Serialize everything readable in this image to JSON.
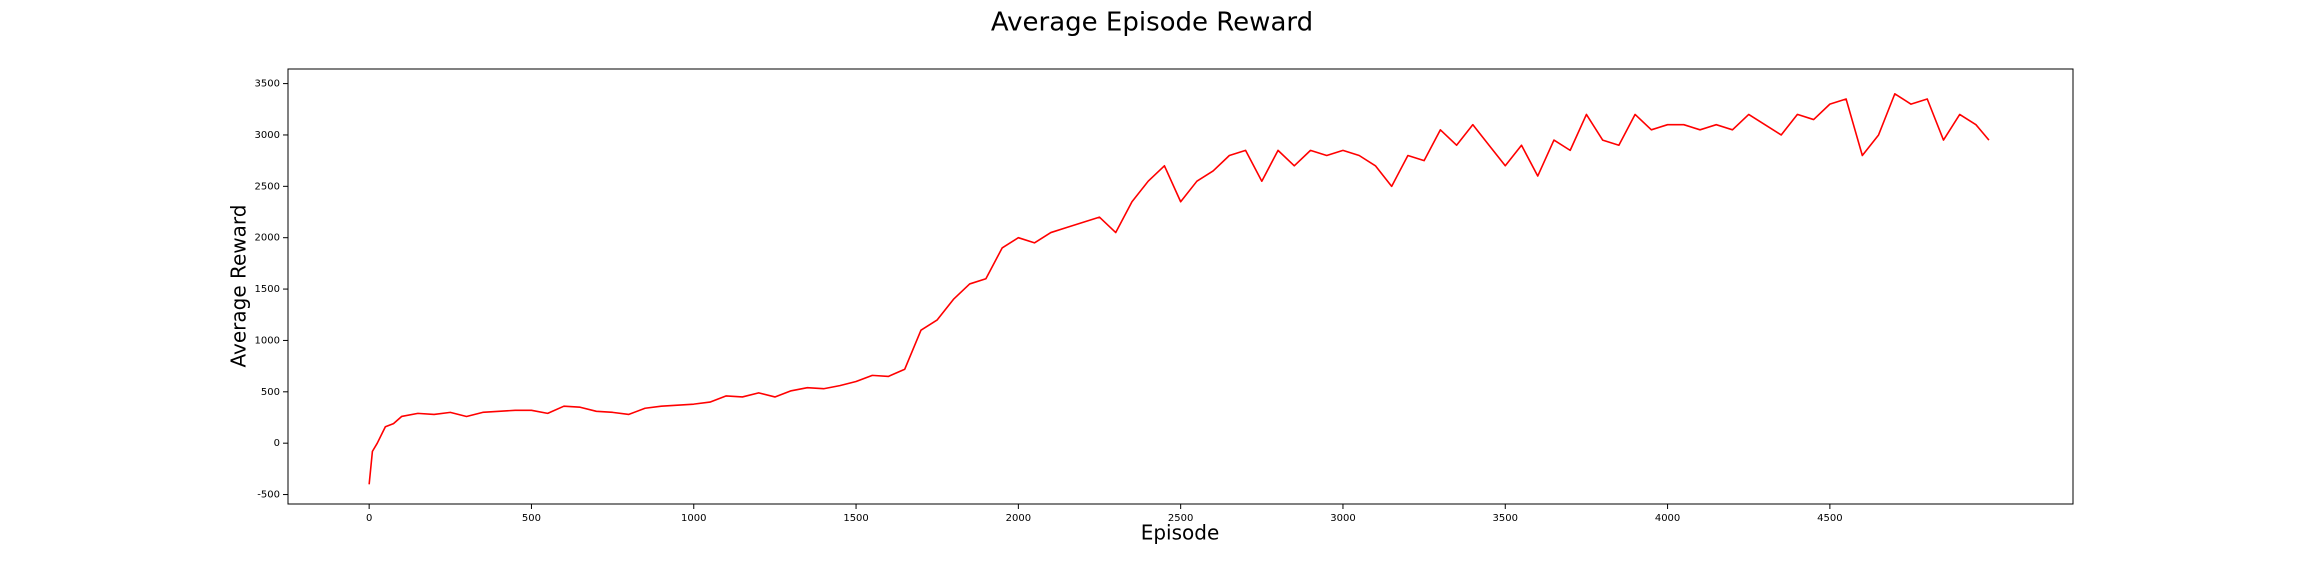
{
  "chart_data": {
    "type": "line",
    "title": "Average Episode Reward",
    "x_label": "Episode",
    "y_label": "Average Reward",
    "x": [
      0,
      10,
      25,
      50,
      75,
      100,
      150,
      200,
      250,
      300,
      350,
      400,
      450,
      500,
      550,
      600,
      650,
      700,
      750,
      800,
      850,
      900,
      950,
      1000,
      1050,
      1100,
      1150,
      1200,
      1250,
      1300,
      1350,
      1400,
      1450,
      1500,
      1550,
      1600,
      1650,
      1700,
      1750,
      1800,
      1850,
      1900,
      1950,
      2000,
      2050,
      2100,
      2150,
      2200,
      2250,
      2300,
      2350,
      2400,
      2450,
      2500,
      2550,
      2600,
      2650,
      2700,
      2750,
      2800,
      2850,
      2900,
      2950,
      3000,
      3050,
      3100,
      3150,
      3200,
      3250,
      3300,
      3350,
      3400,
      3450,
      3500,
      3550,
      3600,
      3650,
      3700,
      3750,
      3800,
      3850,
      3900,
      3950,
      4000,
      4050,
      4100,
      4150,
      4200,
      4250,
      4300,
      4350,
      4400,
      4450,
      4500,
      4550,
      4600,
      4650,
      4700,
      4750,
      4800,
      4850,
      4900,
      4950,
      4990
    ],
    "series": [
      {
        "name": "Average Reward",
        "color": "#ff0000",
        "values": [
          -400,
          -80,
          0,
          160,
          190,
          260,
          290,
          280,
          300,
          260,
          300,
          310,
          320,
          320,
          290,
          360,
          350,
          310,
          300,
          280,
          340,
          360,
          370,
          380,
          400,
          460,
          450,
          490,
          450,
          510,
          540,
          530,
          560,
          600,
          660,
          650,
          720,
          1100,
          1200,
          1400,
          1550,
          1600,
          1900,
          2000,
          1950,
          2050,
          2100,
          2150,
          2200,
          2050,
          2350,
          2550,
          2700,
          2350,
          2550,
          2650,
          2800,
          2850,
          2550,
          2850,
          2700,
          2850,
          2800,
          2850,
          2800,
          2700,
          2500,
          2800,
          2750,
          3050,
          2900,
          3100,
          2900,
          2700,
          2900,
          2600,
          2950,
          2850,
          3200,
          2950,
          2900,
          3200,
          3050,
          3100,
          3100,
          3050,
          3100,
          3050,
          3200,
          3100,
          3000,
          3200,
          3150,
          3300,
          3350,
          2800,
          3000,
          3400,
          3300,
          3350,
          2950,
          3200,
          3100,
          2950
        ]
      }
    ],
    "xlim": [
      -250,
      5249
    ],
    "ylim": [
      -592,
      3642
    ],
    "xticks": [
      0,
      500,
      1000,
      1500,
      2000,
      2500,
      3000,
      3500,
      4000,
      4500
    ],
    "yticks": [
      -500,
      0,
      500,
      1000,
      1500,
      2000,
      2500,
      3000,
      3500
    ]
  }
}
